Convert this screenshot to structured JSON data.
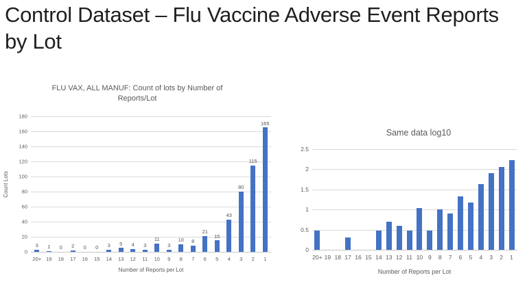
{
  "slide": {
    "title": "Control Dataset – Flu Vaccine Adverse Event Reports by Lot"
  },
  "chart_data": [
    {
      "type": "bar",
      "title": "FLU VAX, ALL MANUF: Count of lots by Number of Reports/Lot",
      "categories": [
        "20+",
        "19",
        "18",
        "17",
        "16",
        "15",
        "14",
        "13",
        "12",
        "11",
        "10",
        "9",
        "8",
        "7",
        "6",
        "5",
        "4",
        "3",
        "2",
        "1"
      ],
      "values": [
        3,
        1,
        0,
        2,
        0,
        0,
        3,
        5,
        4,
        3,
        11,
        3,
        10,
        8,
        21,
        15,
        43,
        80,
        115,
        165
      ],
      "show_data_labels": true,
      "xlabel": "Number of Reports per Lot",
      "ylabel": "Count Lots",
      "ylim": [
        0,
        180
      ],
      "ytick_step": 20,
      "grid": true,
      "legend": "none",
      "bar_color": "#4472C4"
    },
    {
      "type": "bar",
      "title": "Same data log10",
      "categories": [
        "20+",
        "19",
        "18",
        "17",
        "16",
        "15",
        "14",
        "13",
        "12",
        "11",
        "10",
        "9",
        "8",
        "7",
        "6",
        "5",
        "4",
        "3",
        "2",
        "1"
      ],
      "values": [
        0.48,
        0,
        0,
        0.3,
        0,
        0,
        0.48,
        0.7,
        0.6,
        0.48,
        1.04,
        0.48,
        1,
        0.9,
        1.32,
        1.18,
        1.63,
        1.9,
        2.06,
        2.22
      ],
      "show_data_labels": false,
      "xlabel": "Number of Reports per Lot",
      "ylabel": "",
      "ylim": [
        0,
        2.5
      ],
      "ytick_step": 0.5,
      "grid": true,
      "legend": "none",
      "bar_color": "#4472C4"
    }
  ]
}
